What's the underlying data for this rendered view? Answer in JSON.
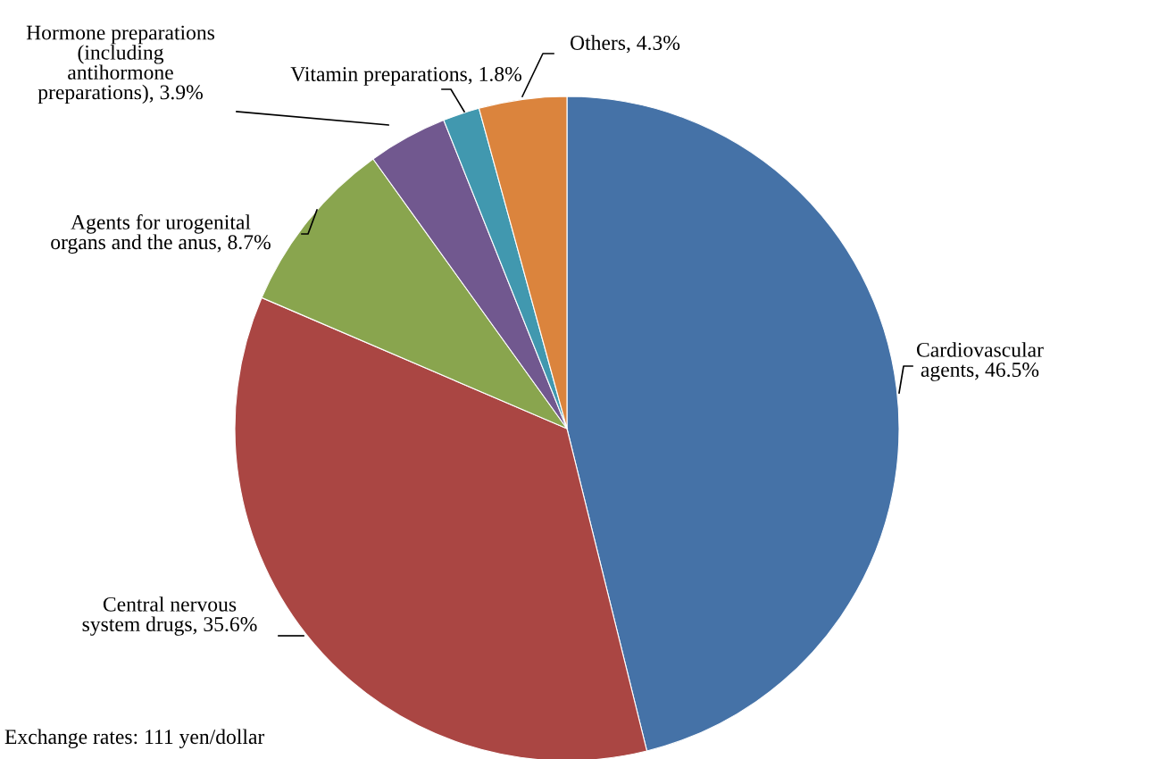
{
  "chart_data": {
    "type": "pie",
    "categories": [
      "Cardiovascular\nagents",
      "Central nervous\nsystem drugs",
      "Agents for urogenital\norgans and the anus",
      "Hormone preparations\n(including\nantihormone\npreparations)",
      "Vitamin preparations",
      "Others"
    ],
    "values": [
      46.5,
      35.6,
      8.7,
      3.9,
      1.8,
      4.3
    ],
    "value_labels": [
      "46.5%",
      "35.6%",
      "8.7%",
      "3.9%",
      "1.8%",
      "4.3%"
    ],
    "colors": [
      "#4572a7",
      "#aa4643",
      "#89a54e",
      "#71588f",
      "#4198af",
      "#db843d"
    ],
    "annotations": [
      "Exchange rates: 111 yen/dollar"
    ]
  }
}
